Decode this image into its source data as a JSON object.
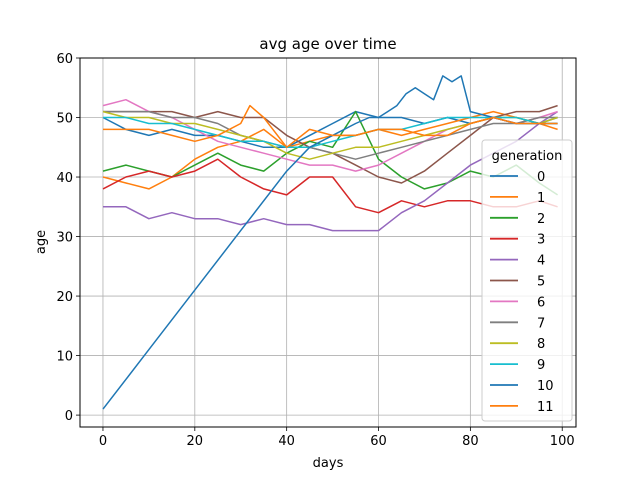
{
  "chart_data": {
    "type": "line",
    "title": "avg age over time",
    "xlabel": "days",
    "ylabel": "age",
    "xlim": [
      -5,
      103
    ],
    "ylim": [
      -2,
      60
    ],
    "xticks": [
      0,
      20,
      40,
      60,
      80,
      100
    ],
    "yticks": [
      0,
      10,
      20,
      30,
      40,
      50,
      60
    ],
    "grid": true,
    "legend": {
      "title": "generation",
      "placement": "right"
    },
    "series": [
      {
        "name": "0",
        "color": "#1f77b4",
        "x": [
          0,
          5,
          10,
          15,
          20,
          25,
          30,
          35,
          40,
          45,
          50,
          55,
          60,
          65,
          70,
          75,
          80,
          85,
          90,
          95,
          99
        ],
        "y": [
          50,
          48,
          47,
          48,
          47,
          47,
          46,
          45,
          45,
          47,
          49,
          51,
          50,
          50,
          49,
          50,
          49,
          50,
          49,
          49,
          50
        ]
      },
      {
        "name": "1",
        "color": "#ff7f0e",
        "x": [
          0,
          5,
          10,
          15,
          20,
          25,
          30,
          35,
          40,
          45,
          50,
          55,
          60,
          65,
          70,
          75,
          80,
          85,
          90,
          95,
          99
        ],
        "y": [
          40,
          39,
          38,
          40,
          43,
          45,
          46,
          48,
          45,
          46,
          47,
          47,
          48,
          47,
          48,
          49,
          50,
          51,
          50,
          49,
          48
        ]
      },
      {
        "name": "2",
        "color": "#2ca02c",
        "x": [
          0,
          5,
          10,
          15,
          20,
          25,
          30,
          35,
          40,
          45,
          50,
          55,
          60,
          65,
          70,
          75,
          80,
          85,
          90,
          95,
          99
        ],
        "y": [
          41,
          42,
          41,
          40,
          42,
          44,
          42,
          41,
          44,
          46,
          45,
          51,
          43,
          40,
          38,
          39,
          41,
          40,
          42,
          39,
          37
        ]
      },
      {
        "name": "3",
        "color": "#d62728",
        "x": [
          0,
          5,
          10,
          15,
          20,
          25,
          30,
          35,
          40,
          45,
          50,
          55,
          60,
          65,
          70,
          75,
          80,
          85,
          90,
          95,
          99
        ],
        "y": [
          38,
          40,
          41,
          40,
          41,
          43,
          40,
          38,
          37,
          40,
          40,
          35,
          34,
          36,
          35,
          36,
          36,
          35,
          35,
          36,
          35
        ]
      },
      {
        "name": "4",
        "color": "#9467bd",
        "x": [
          0,
          5,
          10,
          15,
          20,
          25,
          30,
          35,
          40,
          45,
          50,
          55,
          60,
          65,
          70,
          75,
          80,
          85,
          90,
          95,
          99
        ],
        "y": [
          35,
          35,
          33,
          34,
          33,
          33,
          32,
          33,
          32,
          32,
          31,
          31,
          31,
          34,
          36,
          39,
          42,
          44,
          46,
          49,
          51
        ]
      },
      {
        "name": "5",
        "color": "#8c564b",
        "x": [
          0,
          5,
          10,
          15,
          20,
          25,
          30,
          35,
          40,
          45,
          50,
          55,
          60,
          65,
          70,
          75,
          80,
          85,
          90,
          95,
          99
        ],
        "y": [
          51,
          51,
          51,
          51,
          50,
          51,
          50,
          50,
          47,
          45,
          44,
          42,
          40,
          39,
          41,
          44,
          47,
          50,
          51,
          51,
          52
        ]
      },
      {
        "name": "6",
        "color": "#e377c2",
        "x": [
          0,
          5,
          10,
          15,
          20,
          25,
          30,
          35,
          40,
          45,
          50,
          55,
          60,
          65,
          70,
          75,
          80,
          85,
          90,
          95,
          99
        ],
        "y": [
          52,
          53,
          51,
          50,
          48,
          46,
          45,
          44,
          43,
          42,
          42,
          41,
          42,
          44,
          46,
          48,
          49,
          50,
          49,
          50,
          51
        ]
      },
      {
        "name": "7",
        "color": "#7f7f7f",
        "x": [
          0,
          5,
          10,
          15,
          20,
          25,
          30,
          35,
          40,
          45,
          50,
          55,
          60,
          65,
          70,
          75,
          80,
          85,
          90,
          95,
          99
        ],
        "y": [
          51,
          51,
          51,
          50,
          50,
          49,
          47,
          46,
          45,
          45,
          44,
          43,
          44,
          45,
          46,
          47,
          48,
          49,
          49,
          50,
          50
        ]
      },
      {
        "name": "8",
        "color": "#bcbd22",
        "x": [
          0,
          5,
          10,
          15,
          20,
          25,
          30,
          35,
          40,
          45,
          50,
          55,
          60,
          65,
          70,
          75,
          80,
          85,
          90,
          95,
          99
        ],
        "y": [
          51,
          50,
          50,
          49,
          49,
          48,
          47,
          46,
          44,
          43,
          44,
          45,
          45,
          46,
          47,
          48,
          49,
          50,
          50,
          49,
          50
        ]
      },
      {
        "name": "9",
        "color": "#17becf",
        "x": [
          0,
          5,
          10,
          15,
          20,
          25,
          30,
          35,
          40,
          45,
          50,
          55,
          60,
          65,
          70,
          75,
          80,
          85,
          90,
          95,
          99
        ],
        "y": [
          50,
          50,
          49,
          49,
          48,
          47,
          46,
          46,
          45,
          45,
          46,
          47,
          48,
          48,
          49,
          50,
          50,
          50,
          50,
          49,
          49
        ]
      },
      {
        "name": "10",
        "color": "#1f77b4",
        "x": [
          0,
          10,
          20,
          30,
          40,
          45,
          50,
          55,
          58,
          60,
          62,
          64,
          66,
          68,
          70,
          72,
          74,
          76,
          78,
          80,
          85,
          90,
          95,
          99
        ],
        "y": [
          1,
          11,
          21,
          31,
          41,
          45,
          47,
          49,
          50,
          50,
          51,
          52,
          54,
          55,
          54,
          53,
          57,
          56,
          57,
          51,
          50,
          49,
          49,
          49
        ]
      },
      {
        "name": "11",
        "color": "#ff7f0e",
        "x": [
          0,
          5,
          10,
          15,
          20,
          25,
          30,
          32,
          35,
          40,
          45,
          50,
          55,
          60,
          65,
          70,
          75,
          80,
          85,
          90,
          95,
          99
        ],
        "y": [
          48,
          48,
          48,
          47,
          46,
          47,
          49,
          52,
          50,
          45,
          48,
          47,
          47,
          48,
          48,
          47,
          47,
          49,
          50,
          49,
          49,
          49
        ]
      }
    ]
  }
}
